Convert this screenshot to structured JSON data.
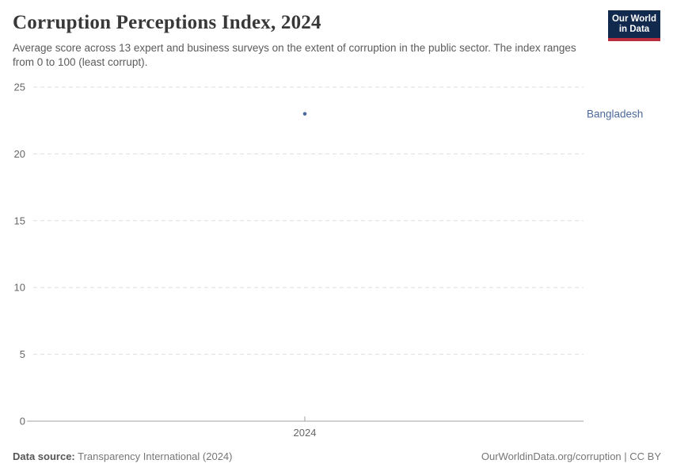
{
  "header": {
    "title": "Corruption Perceptions Index, 2024",
    "subtitle": "Average score across 13 expert and business surveys on the extent of corruption in the public sector. The index ranges from 0 to 100 (least corrupt).",
    "logo": {
      "line1": "Our World",
      "line2": "in Data"
    }
  },
  "chart_data": {
    "type": "scatter",
    "title": "Corruption Perceptions Index, 2024",
    "x": [
      2024
    ],
    "x_tick_labels": [
      "2024"
    ],
    "series": [
      {
        "name": "Bangladesh",
        "values": [
          23
        ],
        "color": "#4C6A9C"
      }
    ],
    "ylim": [
      0,
      25
    ],
    "y_ticks": [
      0,
      5,
      10,
      15,
      20,
      25
    ],
    "xlabel": "",
    "ylabel": "",
    "grid": "horizontal-dashed",
    "legend": "entity-label-right-of-plot"
  },
  "footer": {
    "source_label": "Data source:",
    "source_value": "Transparency International (2024)",
    "attribution": "OurWorldinData.org/corruption | CC BY"
  },
  "colors": {
    "accent_blue": "#4C6A9C",
    "grid": "#DDDDDD",
    "axis": "#A1A1A1",
    "tick_label": "#666666",
    "title_text": "#383838",
    "subtitle_text": "#5B5B5B",
    "logo_bg": "#12294E",
    "logo_red": "#B92D3C"
  }
}
